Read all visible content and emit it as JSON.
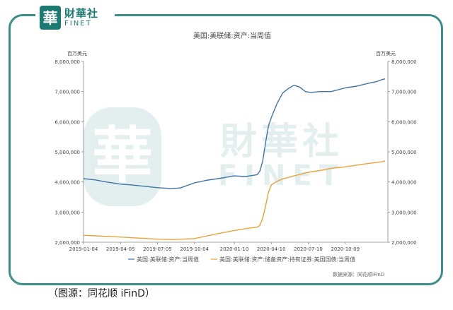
{
  "logo": {
    "seal": "華",
    "cn": "財華社",
    "en": "FINET"
  },
  "watermark": {
    "seal": "華",
    "cn": "財華社",
    "en": "FINET"
  },
  "caption": "（图源：同花顺 iFinD）",
  "chart_data": {
    "type": "line",
    "title": "美国:美联储:资产:当周值",
    "left_unit": "百万美元",
    "right_unit": "百万美元",
    "source": "数据来源：同花顺iFinD",
    "x_ticks": [
      "2019-01-04",
      "2019-04-05",
      "2019-07-05",
      "2019-10-04",
      "2020-01-10",
      "2020-04-10",
      "2020-07-10",
      "2020-10-09"
    ],
    "y_left": {
      "min": 2000000,
      "max": 8000000,
      "ticks": [
        "2,000,000",
        "3,000,000",
        "4,000,000",
        "5,000,000",
        "6,000,000",
        "7,000,000",
        "8,000,000"
      ]
    },
    "y_right": {
      "min": 2000000,
      "max": 8000000,
      "ticks": [
        "2,000,000",
        "3,000,000",
        "4,000,000",
        "5,000,000",
        "6,000,000",
        "7,000,000",
        "8,000,000"
      ]
    },
    "series": [
      {
        "name": "美国:美联储:资产:当周值",
        "color": "#3f75a8",
        "axis": "left",
        "points": [
          [
            "2019-01-04",
            4110000
          ],
          [
            "2019-02-01",
            4070000
          ],
          [
            "2019-03-01",
            4000000
          ],
          [
            "2019-04-05",
            3930000
          ],
          [
            "2019-05-03",
            3900000
          ],
          [
            "2019-06-07",
            3850000
          ],
          [
            "2019-07-05",
            3810000
          ],
          [
            "2019-08-09",
            3780000
          ],
          [
            "2019-08-30",
            3800000
          ],
          [
            "2019-09-20",
            3900000
          ],
          [
            "2019-10-04",
            3970000
          ],
          [
            "2019-11-01",
            4050000
          ],
          [
            "2019-12-06",
            4120000
          ],
          [
            "2020-01-10",
            4200000
          ],
          [
            "2020-02-07",
            4180000
          ],
          [
            "2020-03-06",
            4240000
          ],
          [
            "2020-03-13",
            4360000
          ],
          [
            "2020-03-20",
            4700000
          ],
          [
            "2020-03-27",
            5300000
          ],
          [
            "2020-04-03",
            5850000
          ],
          [
            "2020-04-10",
            6130000
          ],
          [
            "2020-04-24",
            6600000
          ],
          [
            "2020-05-08",
            6950000
          ],
          [
            "2020-05-22",
            7100000
          ],
          [
            "2020-06-05",
            7210000
          ],
          [
            "2020-06-19",
            7150000
          ],
          [
            "2020-07-03",
            7000000
          ],
          [
            "2020-07-17",
            6970000
          ],
          [
            "2020-08-07",
            7000000
          ],
          [
            "2020-09-04",
            7000000
          ],
          [
            "2020-10-09",
            7120000
          ],
          [
            "2020-11-06",
            7180000
          ],
          [
            "2020-12-04",
            7270000
          ],
          [
            "2020-12-25",
            7330000
          ],
          [
            "2021-01-08",
            7400000
          ],
          [
            "2021-01-15",
            7420000
          ]
        ]
      },
      {
        "name": "美国:美联储:资产:储备资产:持有证券:美国国债:当周值",
        "color": "#e8a33a",
        "axis": "right",
        "points": [
          [
            "2019-01-04",
            2230000
          ],
          [
            "2019-04-05",
            2170000
          ],
          [
            "2019-07-05",
            2100000
          ],
          [
            "2019-08-09",
            2090000
          ],
          [
            "2019-10-04",
            2120000
          ],
          [
            "2019-11-01",
            2200000
          ],
          [
            "2019-12-06",
            2300000
          ],
          [
            "2020-01-10",
            2390000
          ],
          [
            "2020-02-07",
            2450000
          ],
          [
            "2020-03-06",
            2500000
          ],
          [
            "2020-03-13",
            2560000
          ],
          [
            "2020-03-20",
            2800000
          ],
          [
            "2020-03-27",
            3200000
          ],
          [
            "2020-04-03",
            3650000
          ],
          [
            "2020-04-10",
            3900000
          ],
          [
            "2020-04-24",
            4020000
          ],
          [
            "2020-05-08",
            4100000
          ],
          [
            "2020-06-05",
            4200000
          ],
          [
            "2020-07-10",
            4320000
          ],
          [
            "2020-08-07",
            4380000
          ],
          [
            "2020-09-04",
            4450000
          ],
          [
            "2020-10-09",
            4500000
          ],
          [
            "2020-11-06",
            4560000
          ],
          [
            "2020-12-04",
            4610000
          ],
          [
            "2021-01-08",
            4670000
          ],
          [
            "2021-01-15",
            4700000
          ]
        ]
      }
    ]
  }
}
